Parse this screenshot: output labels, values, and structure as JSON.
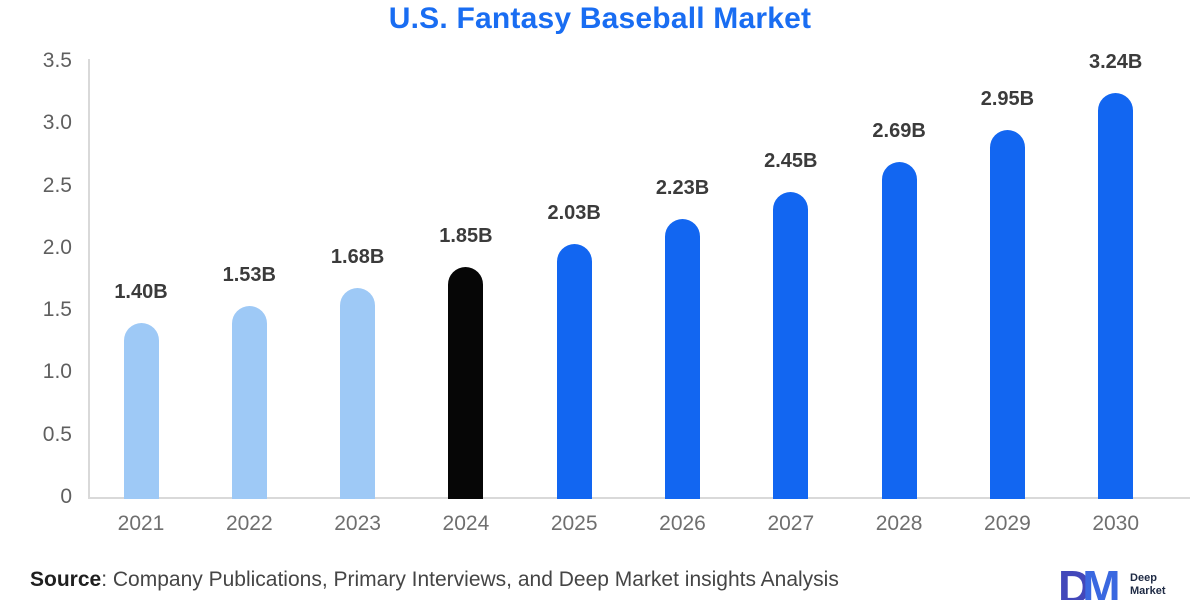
{
  "title": "U.S. Fantasy Baseball Market",
  "colors": {
    "title": "#196DF2",
    "bar_light": "#9EC9F6",
    "bar_black": "#060606",
    "bar_blue": "#1266F1",
    "axis_line": "#d9d9d9",
    "tick_label": "#5f5f5f",
    "cat_label": "#6f6f6f",
    "value_label": "#3b3b3b",
    "source_text": "#454545",
    "logo_d": "#4348BA",
    "logo_m": "#3A68E0",
    "logo_text": "#1E2A44"
  },
  "chart_data": {
    "type": "bar",
    "title": "U.S. Fantasy Baseball Market",
    "categories": [
      "2021",
      "2022",
      "2023",
      "2024",
      "2025",
      "2026",
      "2027",
      "2028",
      "2029",
      "2030"
    ],
    "values": [
      1.4,
      1.53,
      1.68,
      1.85,
      2.03,
      2.23,
      2.45,
      2.69,
      2.95,
      3.24
    ],
    "value_labels": [
      "1.40B",
      "1.53B",
      "1.68B",
      "1.85B",
      "2.03B",
      "2.23B",
      "2.45B",
      "2.69B",
      "2.95B",
      "3.24B"
    ],
    "bar_colors": [
      "#9EC9F6",
      "#9EC9F6",
      "#9EC9F6",
      "#060606",
      "#1266F1",
      "#1266F1",
      "#1266F1",
      "#1266F1",
      "#1266F1",
      "#1266F1"
    ],
    "unit": "B",
    "xlabel": "",
    "ylabel": "",
    "ylim": [
      0,
      3.5
    ],
    "ytick_labels": [
      "0",
      "0.5",
      "1.0",
      "1.5",
      "2.0",
      "2.5",
      "3.0",
      "3.5"
    ],
    "grid": false,
    "legend": false
  },
  "source": {
    "label": "Source",
    "rest": ": Company Publications, Primary Interviews, and Deep Market insights Analysis"
  },
  "logo": {
    "d": "D",
    "m": "M",
    "line1": "Deep",
    "line2": "Market"
  }
}
